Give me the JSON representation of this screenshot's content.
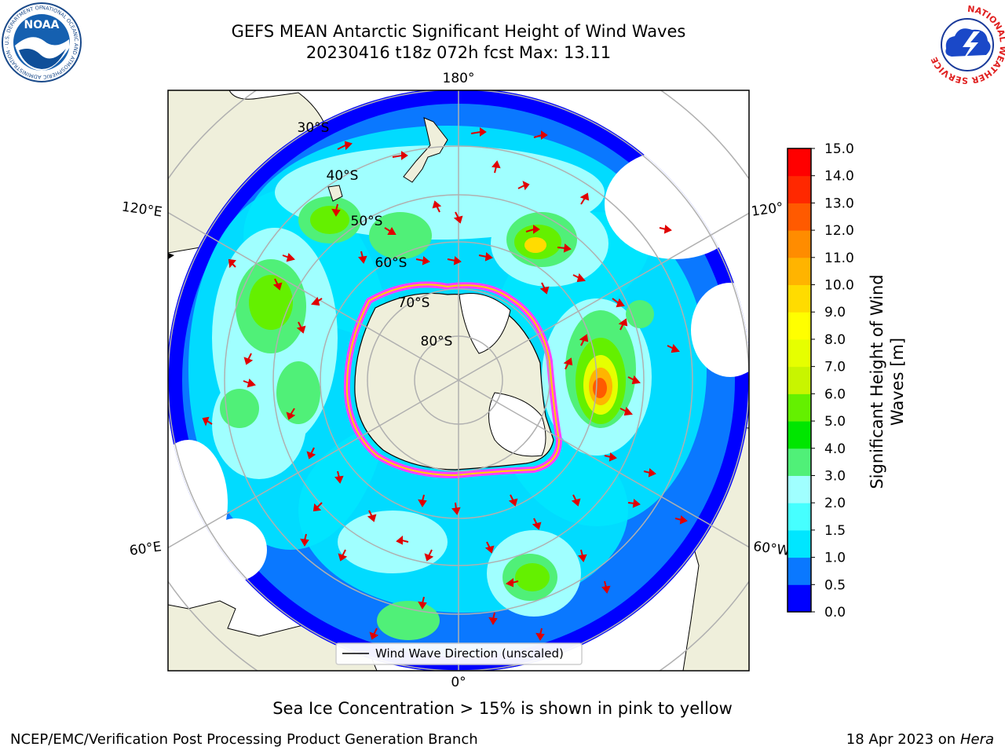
{
  "title": {
    "line1": "GEFS MEAN Antarctic Significant Height of Wind Waves",
    "line2": "20230416 t18z 072h fcst   Max: 13.11"
  },
  "logos": {
    "noaa": {
      "text": "NOAA",
      "ring_text": "NATIONAL OCEANIC AND ATMOSPHERIC ADMINISTRATION · U.S. DEPARTMENT OF COMMERCE"
    },
    "nws": {
      "ring_text": "NATIONAL WEATHER SERVICE"
    }
  },
  "map": {
    "projection": "south-polar-stereographic",
    "longitude_labels": {
      "top": "180°",
      "upper_left": "120°E",
      "upper_right": "120°",
      "lower_left": "60°E",
      "lower_right": "60°W",
      "bottom": "0°"
    },
    "latitude_labels": [
      "30°S",
      "40°S",
      "50°S",
      "60°S",
      "70°S",
      "80°S"
    ],
    "legend": "Wind Wave Direction (unscaled)"
  },
  "colorbar": {
    "label_line1": "Significant Height of Wind",
    "label_line2": "Waves [m]",
    "levels": [
      "0.0",
      "0.5",
      "1.0",
      "1.5",
      "2.0",
      "3.0",
      "4.0",
      "5.0",
      "6.0",
      "7.0",
      "8.0",
      "9.0",
      "10.0",
      "11.0",
      "12.0",
      "13.0",
      "14.0",
      "15.0"
    ],
    "colors": [
      "#0000ff",
      "#0a78ff",
      "#00e6ff",
      "#46ffff",
      "#a0ffff",
      "#50f078",
      "#00e600",
      "#64f000",
      "#c8f500",
      "#e6ff00",
      "#ffff00",
      "#ffdc00",
      "#ffb400",
      "#ff8c00",
      "#ff5a00",
      "#ff2800",
      "#ff0000"
    ]
  },
  "colors": {
    "land": "#efefdb",
    "antarctica": "#efefdb",
    "ocean_no_data": "#ffffff",
    "grid": "#b0b0b0",
    "arrow": "#e00000",
    "sea_ice_edge": "#ff40ff"
  },
  "caption": "Sea Ice Concentration > 15% is shown in pink to yellow",
  "footer": {
    "left": "NCEP/EMC/Verification Post Processing Product Generation Branch",
    "right_date": "18 Apr 2023 on ",
    "right_host": "Hera"
  }
}
